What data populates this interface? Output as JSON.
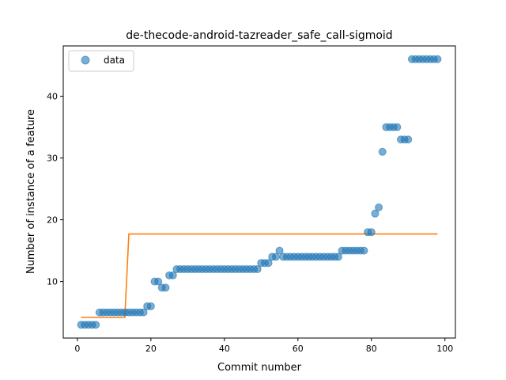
{
  "chart_data": {
    "type": "scatter",
    "title": "de-thecode-android-tazreader_safe_call-sigmoid",
    "xlabel": "Commit number",
    "ylabel": "Number of instance of a feature",
    "xlim": [
      -3.85,
      102.85
    ],
    "ylim": [
      0.85,
      48.15
    ],
    "xticks": [
      0,
      20,
      40,
      60,
      80,
      100
    ],
    "yticks": [
      10,
      20,
      30,
      40
    ],
    "grid": false,
    "legend": {
      "position": "top-left",
      "entries": [
        "data"
      ]
    },
    "series": [
      {
        "name": "data",
        "kind": "scatter",
        "color": "#1f77b4",
        "x": [
          1,
          2,
          3,
          4,
          5,
          6,
          7,
          8,
          9,
          10,
          11,
          12,
          13,
          14,
          15,
          16,
          17,
          18,
          19,
          20,
          21,
          22,
          23,
          24,
          25,
          26,
          27,
          28,
          29,
          30,
          31,
          32,
          33,
          34,
          35,
          36,
          37,
          38,
          39,
          40,
          41,
          42,
          43,
          44,
          45,
          46,
          47,
          48,
          49,
          50,
          51,
          52,
          53,
          54,
          55,
          56,
          57,
          58,
          59,
          60,
          61,
          62,
          63,
          64,
          65,
          66,
          67,
          68,
          69,
          70,
          71,
          72,
          73,
          74,
          75,
          76,
          77,
          78,
          79,
          80,
          81,
          82,
          83,
          84,
          85,
          86,
          87,
          88,
          89,
          90,
          91,
          92,
          93,
          94,
          95,
          96,
          97,
          98
        ],
        "y": [
          3,
          3,
          3,
          3,
          3,
          5,
          5,
          5,
          5,
          5,
          5,
          5,
          5,
          5,
          5,
          5,
          5,
          5,
          6,
          6,
          10,
          10,
          9,
          9,
          11,
          11,
          12,
          12,
          12,
          12,
          12,
          12,
          12,
          12,
          12,
          12,
          12,
          12,
          12,
          12,
          12,
          12,
          12,
          12,
          12,
          12,
          12,
          12,
          12,
          13,
          13,
          13,
          14,
          14,
          15,
          14,
          14,
          14,
          14,
          14,
          14,
          14,
          14,
          14,
          14,
          14,
          14,
          14,
          14,
          14,
          14,
          15,
          15,
          15,
          15,
          15,
          15,
          15,
          18,
          18,
          21,
          22,
          31,
          35,
          35,
          35,
          35,
          33,
          33,
          33,
          46,
          46,
          46,
          46,
          46,
          46,
          46,
          46
        ]
      },
      {
        "name": "",
        "kind": "line",
        "color": "#ff7f0e",
        "x": [
          1,
          12.9,
          14,
          98
        ],
        "y": [
          4.2,
          4.2,
          17.7,
          17.7
        ]
      }
    ]
  }
}
